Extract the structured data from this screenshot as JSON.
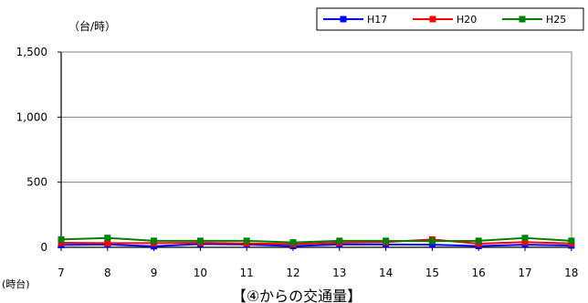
{
  "chart_data": {
    "type": "line",
    "title": "【④からの交通量】",
    "ylabel": "（台/時）",
    "xlabel": "(時台)",
    "x": [
      "7",
      "8",
      "9",
      "10",
      "11",
      "12",
      "13",
      "14",
      "15",
      "16",
      "17",
      "18"
    ],
    "yticks": [
      "0",
      "500",
      "1,000",
      "1,500"
    ],
    "ylim": [
      0,
      1500
    ],
    "grid": true,
    "legend_position": "top-right",
    "series": [
      {
        "name": "H17",
        "color": "#0000ff",
        "marker": "square",
        "values": [
          18,
          22,
          8,
          25,
          22,
          10,
          22,
          22,
          20,
          10,
          20,
          14
        ]
      },
      {
        "name": "H20",
        "color": "#ff0000",
        "marker": "square",
        "values": [
          35,
          32,
          32,
          35,
          30,
          25,
          36,
          40,
          60,
          28,
          40,
          30
        ]
      },
      {
        "name": "H25",
        "color": "#008000",
        "marker": "square",
        "values": [
          60,
          72,
          50,
          50,
          50,
          38,
          50,
          50,
          48,
          50,
          72,
          50
        ]
      }
    ]
  }
}
